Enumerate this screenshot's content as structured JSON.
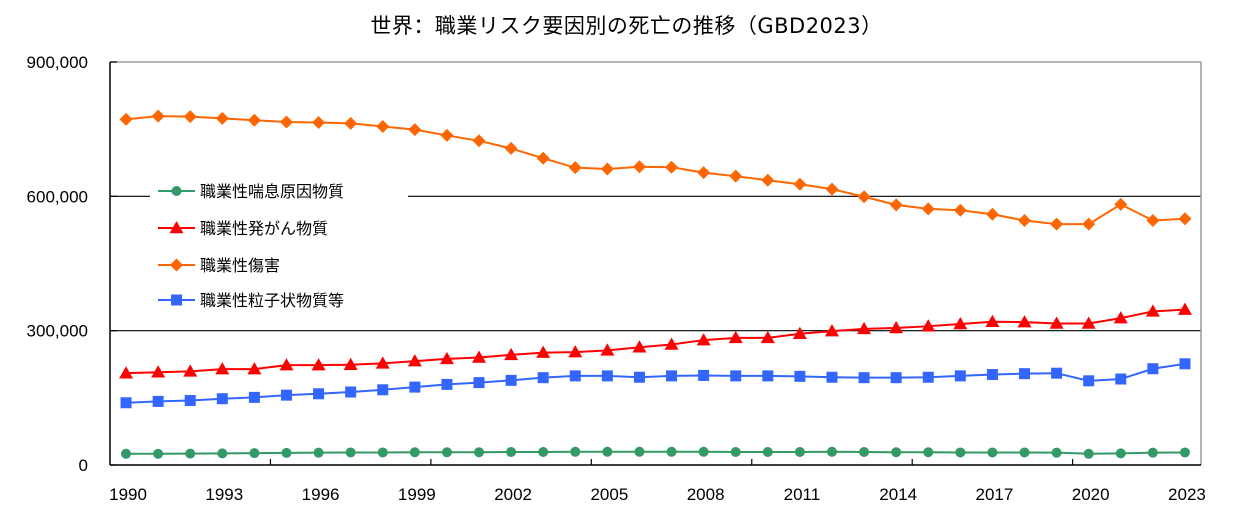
{
  "chart_data": {
    "type": "line",
    "title": "世界：職業リスク要因別の死亡の推移（GBD2023）",
    "xlabel": "",
    "ylabel": "",
    "ylim": [
      0,
      900000
    ],
    "yticks": [
      0,
      300000,
      600000,
      900000
    ],
    "ytick_labels": [
      "0",
      "300,000",
      "600,000",
      "900,000"
    ],
    "gridlines": [
      300000,
      600000
    ],
    "x": [
      1990,
      1991,
      1992,
      1993,
      1994,
      1995,
      1996,
      1997,
      1998,
      1999,
      2000,
      2001,
      2002,
      2003,
      2004,
      2005,
      2006,
      2007,
      2008,
      2009,
      2010,
      2011,
      2012,
      2013,
      2014,
      2015,
      2016,
      2017,
      2018,
      2019,
      2020,
      2021,
      2022,
      2023
    ],
    "xtick_labels": [
      "1990",
      "1993",
      "1996",
      "1999",
      "2002",
      "2005",
      "2008",
      "2011",
      "2014",
      "2017",
      "2020",
      "2023"
    ],
    "legend_position": "left",
    "series": [
      {
        "name": "職業性喘息原因物質",
        "color": "#339966",
        "marker": "circle",
        "values": [
          25000,
          25000,
          25500,
          26000,
          26500,
          27000,
          27500,
          28000,
          28000,
          28500,
          28500,
          28500,
          29000,
          29000,
          29500,
          29500,
          29500,
          29500,
          29500,
          29000,
          29000,
          29000,
          29500,
          29000,
          28500,
          28500,
          28000,
          28000,
          28000,
          27500,
          25000,
          26000,
          27500,
          28000
        ]
      },
      {
        "name": "職業性発がん物質",
        "color": "#FF0000",
        "marker": "triangle",
        "values": [
          205000,
          207000,
          209000,
          214000,
          214000,
          223000,
          223000,
          224000,
          227000,
          232000,
          237000,
          240000,
          246000,
          251000,
          252000,
          256000,
          263000,
          269000,
          279000,
          284000,
          284000,
          293000,
          299000,
          304000,
          306000,
          310000,
          315000,
          320000,
          319000,
          316000,
          316000,
          328000,
          343000,
          347000
        ]
      },
      {
        "name": "職業性傷害",
        "color": "#FF6600",
        "marker": "diamond",
        "values": [
          772000,
          779000,
          778000,
          774000,
          770000,
          766000,
          765000,
          763000,
          756000,
          749000,
          736000,
          724000,
          707000,
          685000,
          664000,
          661000,
          666000,
          665000,
          653000,
          645000,
          636000,
          627000,
          616000,
          599000,
          581000,
          572000,
          569000,
          560000,
          546000,
          538000,
          538000,
          582000,
          546000,
          550000
        ]
      },
      {
        "name": "職業性粒子状物質等",
        "color": "#3366FF",
        "marker": "square",
        "values": [
          139000,
          142000,
          144000,
          148000,
          151000,
          156000,
          159000,
          163000,
          168000,
          174000,
          180000,
          184000,
          189000,
          195000,
          199000,
          199000,
          196000,
          199000,
          200000,
          199000,
          199000,
          198000,
          196000,
          195000,
          195000,
          196000,
          199000,
          202000,
          204000,
          205000,
          188000,
          192000,
          215000,
          226000
        ]
      }
    ]
  }
}
